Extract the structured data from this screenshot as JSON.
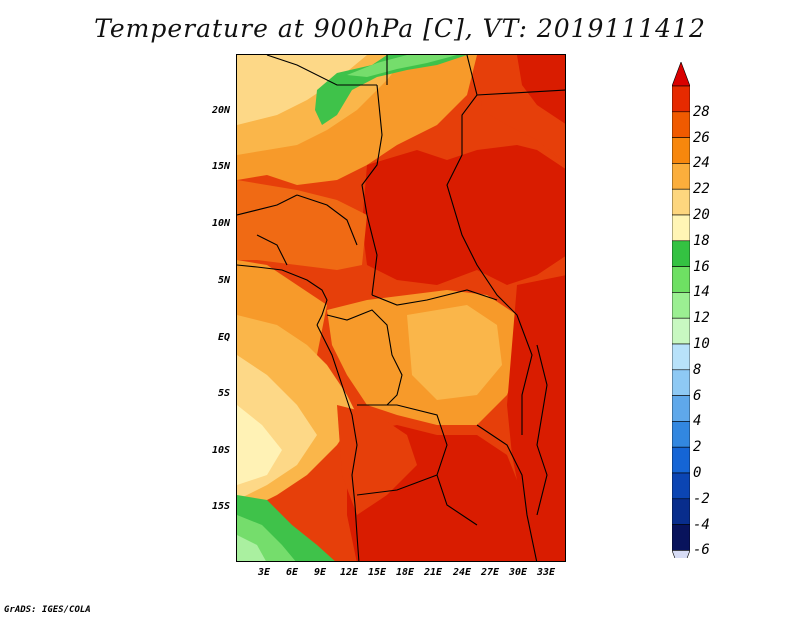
{
  "title": "Temperature at 900hPa [C], VT: 2019111412",
  "credit": "GrADS: IGES/COLA",
  "latitude_labels": [
    "20N",
    "15N",
    "10N",
    "5N",
    "EQ",
    "5S",
    "10S",
    "15S"
  ],
  "longitude_labels": [
    "3E",
    "6E",
    "9E",
    "12E",
    "15E",
    "18E",
    "21E",
    "24E",
    "27E",
    "30E",
    "33E"
  ],
  "colorbar": {
    "labels": [
      "28",
      "26",
      "24",
      "22",
      "20",
      "18",
      "16",
      "14",
      "12",
      "10",
      "8",
      "6",
      "4",
      "2",
      "0",
      "-2",
      "-4",
      "-6"
    ],
    "colors": [
      "#d90000",
      "#e62a00",
      "#f05a00",
      "#f7870d",
      "#fbae3c",
      "#fdd67e",
      "#fff5b5",
      "#34c242",
      "#6ee063",
      "#9bef92",
      "#c8f8c1",
      "#b8e2fa",
      "#8ec9f4",
      "#5fa8ea",
      "#3287e0",
      "#1565d5",
      "#0b45b3",
      "#082d8c",
      "#08135c",
      "#d7dcf5"
    ]
  },
  "map_colors": {
    "hot28": "#d91c00",
    "t26": "#e63f0a",
    "t24": "#f06a14",
    "t22": "#f79a2a",
    "t20": "#fab64a",
    "t18": "#fdd887",
    "t16": "#fff2b5",
    "g14": "#3fc24a",
    "g12": "#75dd6c",
    "g10": "#aaf0a0"
  }
}
